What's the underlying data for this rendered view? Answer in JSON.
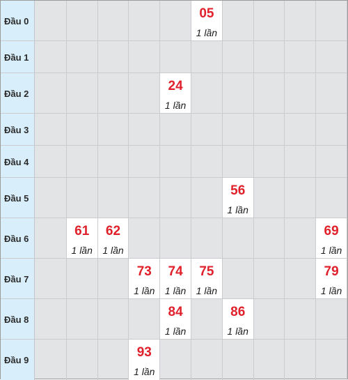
{
  "rows": [
    {
      "label": "Đầu 0",
      "cells": [
        null,
        null,
        null,
        null,
        null,
        {
          "number": "05",
          "count": "1 lần"
        },
        null,
        null,
        null,
        null
      ]
    },
    {
      "label": "Đầu 1",
      "cells": [
        null,
        null,
        null,
        null,
        null,
        null,
        null,
        null,
        null,
        null
      ]
    },
    {
      "label": "Đầu 2",
      "cells": [
        null,
        null,
        null,
        null,
        {
          "number": "24",
          "count": "1 lần"
        },
        null,
        null,
        null,
        null,
        null
      ]
    },
    {
      "label": "Đầu 3",
      "cells": [
        null,
        null,
        null,
        null,
        null,
        null,
        null,
        null,
        null,
        null
      ]
    },
    {
      "label": "Đầu 4",
      "cells": [
        null,
        null,
        null,
        null,
        null,
        null,
        null,
        null,
        null,
        null
      ]
    },
    {
      "label": "Đầu 5",
      "cells": [
        null,
        null,
        null,
        null,
        null,
        null,
        {
          "number": "56",
          "count": "1 lần"
        },
        null,
        null,
        null
      ]
    },
    {
      "label": "Đầu 6",
      "cells": [
        null,
        {
          "number": "61",
          "count": "1 lần"
        },
        {
          "number": "62",
          "count": "1 lần"
        },
        null,
        null,
        null,
        null,
        null,
        null,
        {
          "number": "69",
          "count": "1 lần"
        }
      ]
    },
    {
      "label": "Đầu 7",
      "cells": [
        null,
        null,
        null,
        {
          "number": "73",
          "count": "1 lần"
        },
        {
          "number": "74",
          "count": "1 lần"
        },
        {
          "number": "75",
          "count": "1 lần"
        },
        null,
        null,
        null,
        {
          "number": "79",
          "count": "1 lần"
        }
      ]
    },
    {
      "label": "Đầu 8",
      "cells": [
        null,
        null,
        null,
        null,
        {
          "number": "84",
          "count": "1 lần"
        },
        null,
        {
          "number": "86",
          "count": "1 lần"
        },
        null,
        null,
        null
      ]
    },
    {
      "label": "Đầu 9",
      "cells": [
        null,
        null,
        null,
        {
          "number": "93",
          "count": "1 lần"
        },
        null,
        null,
        null,
        null,
        null,
        null
      ]
    }
  ],
  "colors": {
    "header_bg": "#d8eefa",
    "empty_cell_bg": "#e3e4e6",
    "hit_cell_bg": "#ffffff",
    "number_color": "#e0202a"
  }
}
